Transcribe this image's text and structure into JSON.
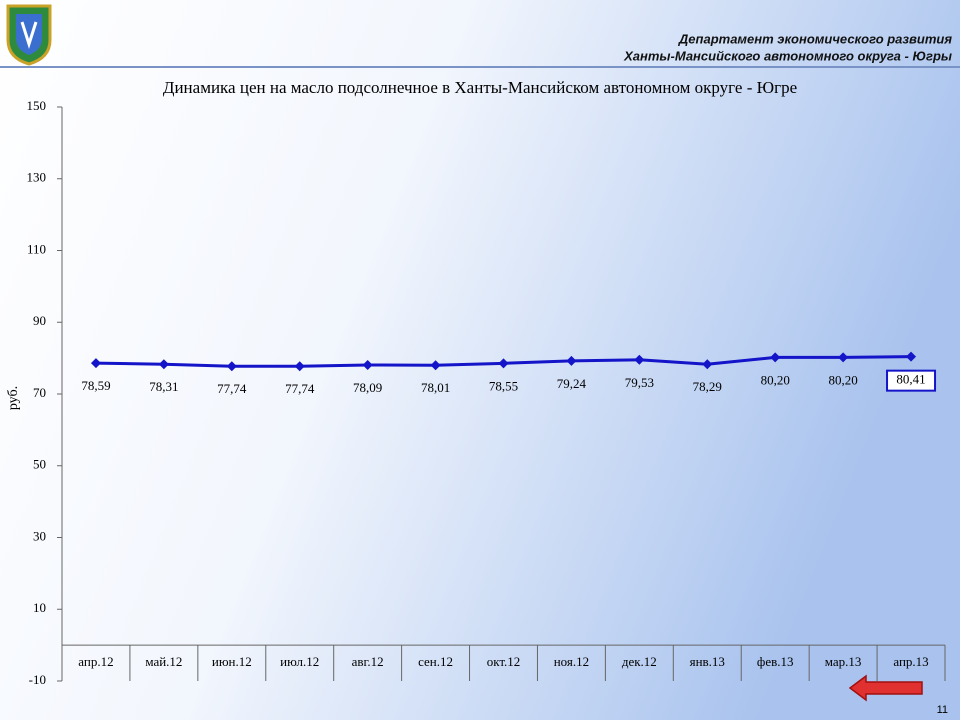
{
  "header": {
    "line1": "Департамент экономического развития",
    "line2": "Ханты-Мансийского автономного округа - Югры"
  },
  "page_number": "11",
  "chart_data": {
    "type": "line",
    "title": "Динамика цен на масло подсолнечное в Ханты-Мансийском автономном округе - Югре",
    "y_label": "руб.",
    "categories": [
      "апр.12",
      "май.12",
      "июн.12",
      "июл.12",
      "авг.12",
      "сен.12",
      "окт.12",
      "ноя.12",
      "дек.12",
      "янв.13",
      "фев.13",
      "мар.13",
      "апр.13"
    ],
    "series": [
      {
        "color": "#1414c8",
        "values": [
          78.59,
          78.31,
          77.74,
          77.74,
          78.09,
          78.01,
          78.55,
          79.24,
          79.53,
          78.29,
          80.2,
          80.2,
          80.41
        ],
        "value_labels": [
          "78,59",
          "78,31",
          "77,74",
          "77,74",
          "78,09",
          "78,01",
          "78,55",
          "79,24",
          "79,53",
          "78,29",
          "80,20",
          "80,20",
          "80,41"
        ]
      }
    ],
    "ylim": [
      -10,
      150
    ],
    "yticks": [
      -10,
      10,
      30,
      50,
      70,
      90,
      110,
      130,
      150
    ]
  }
}
